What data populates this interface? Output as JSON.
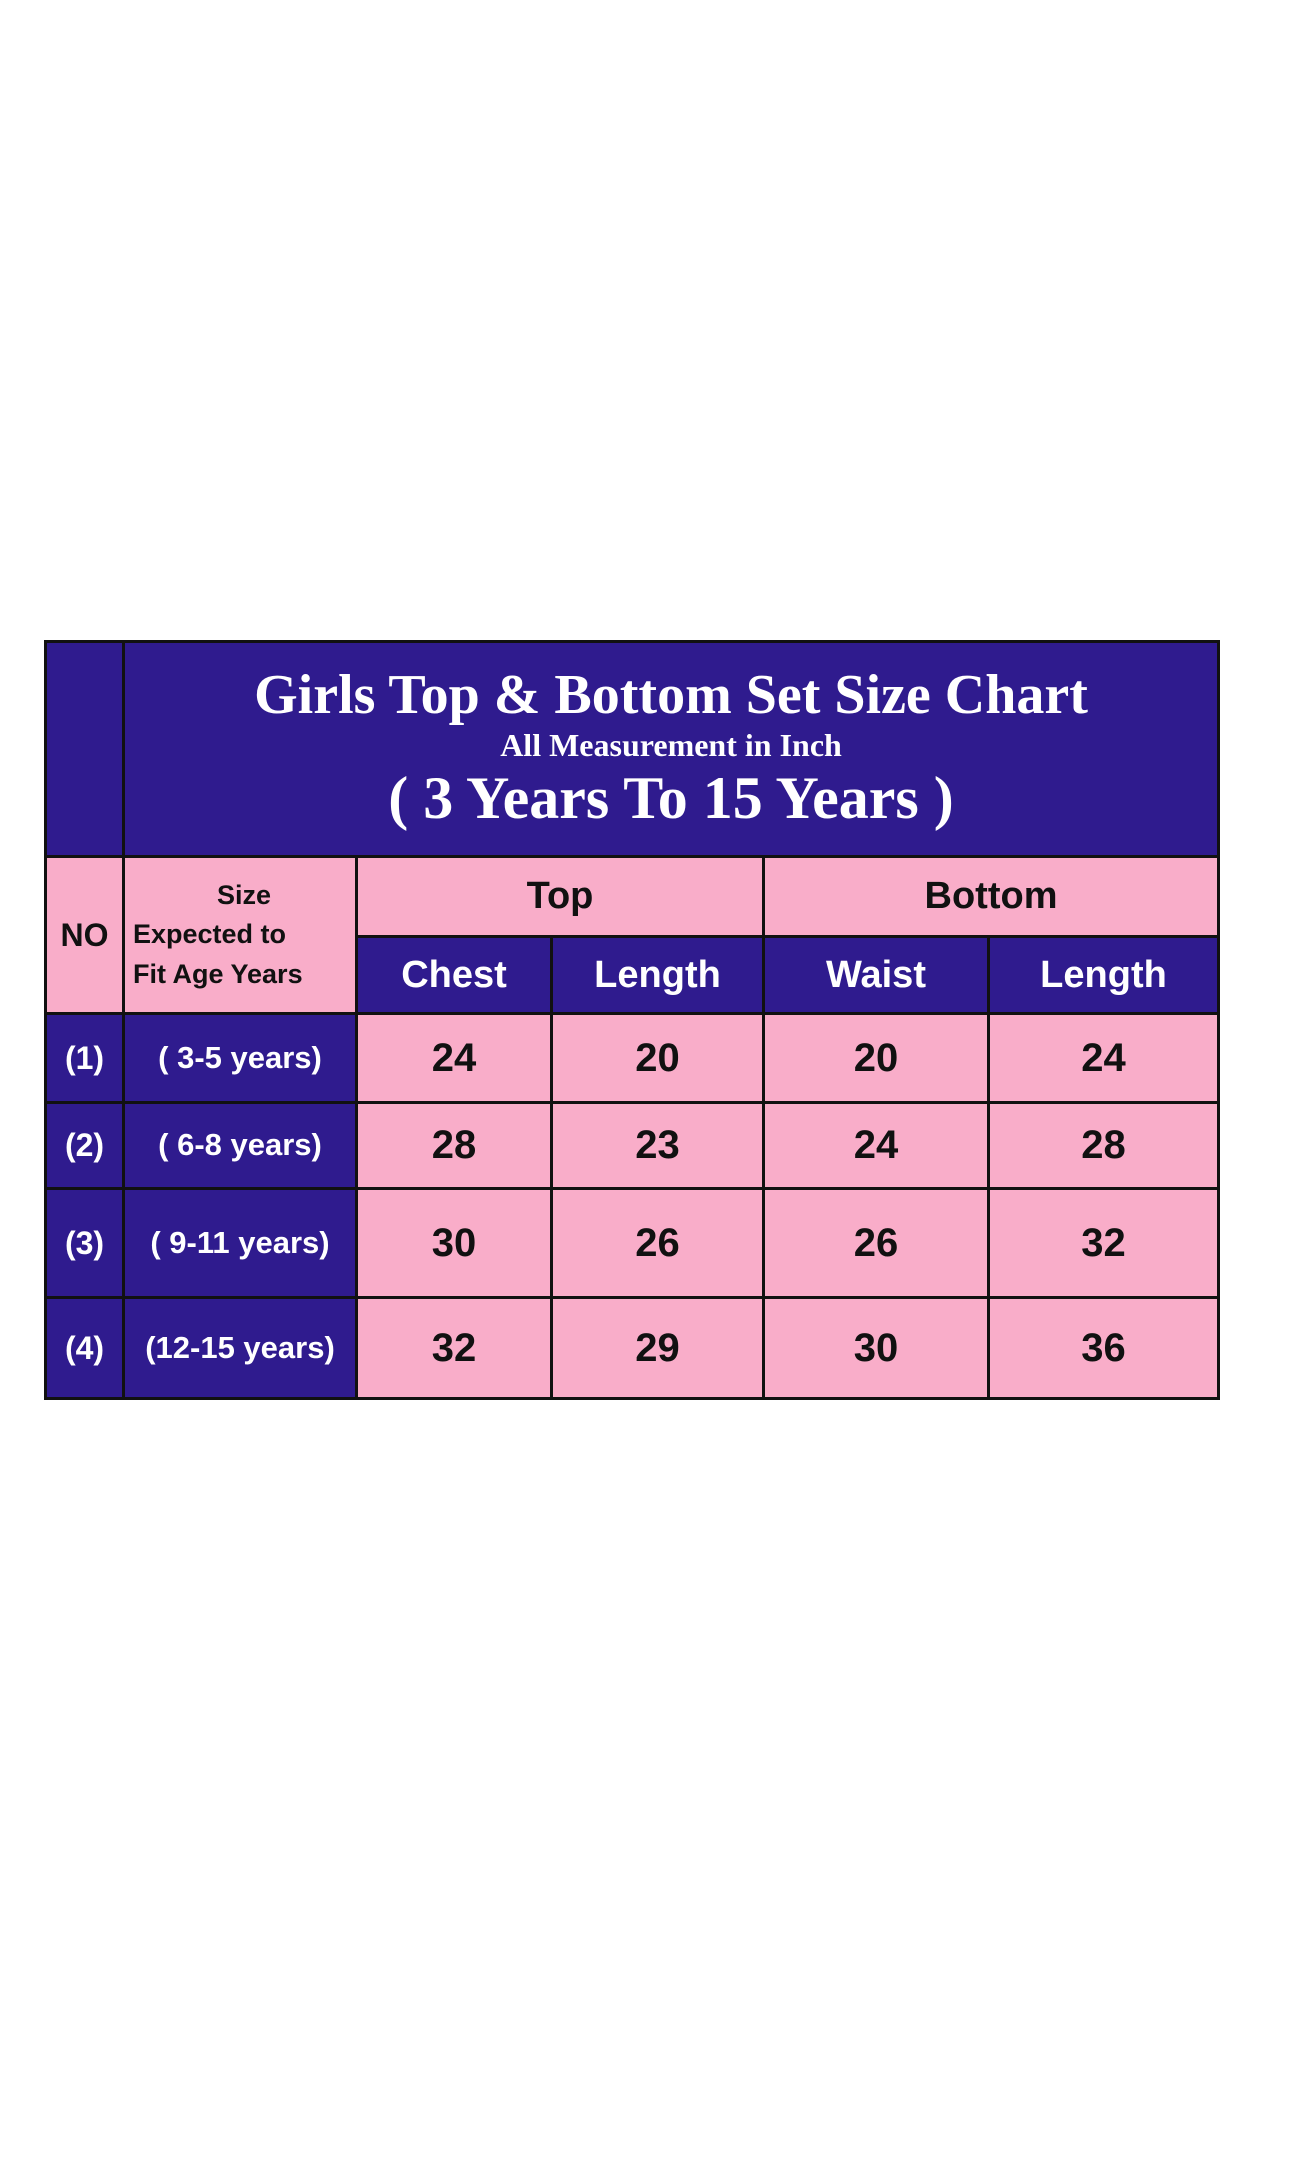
{
  "title": "Girls Top & Bottom Set Size Chart",
  "subtitle": "All Measurement in Inch",
  "range": "( 3 Years To 15 Years )",
  "headers": {
    "no": "NO",
    "size_line1": "Size",
    "size_line2": "Expected to",
    "size_line3": "Fit Age Years",
    "top": "Top",
    "bottom": "Bottom",
    "chest": "Chest",
    "top_length": "Length",
    "waist": "Waist",
    "bottom_length": "Length"
  },
  "colors": {
    "navy": "#2f1b8e",
    "pink": "#f9adc9"
  },
  "rows": [
    {
      "no": "(1)",
      "age": "( 3-5 years)",
      "chest": "24",
      "top_length": "20",
      "waist": "20",
      "bottom_length": "24"
    },
    {
      "no": "(2)",
      "age": "( 6-8 years)",
      "chest": "28",
      "top_length": "23",
      "waist": "24",
      "bottom_length": "28"
    },
    {
      "no": "(3)",
      "age": "( 9-11 years)",
      "chest": "30",
      "top_length": "26",
      "waist": "26",
      "bottom_length": "32"
    },
    {
      "no": "(4)",
      "age": "(12-15 years)",
      "chest": "32",
      "top_length": "29",
      "waist": "30",
      "bottom_length": "36"
    }
  ]
}
